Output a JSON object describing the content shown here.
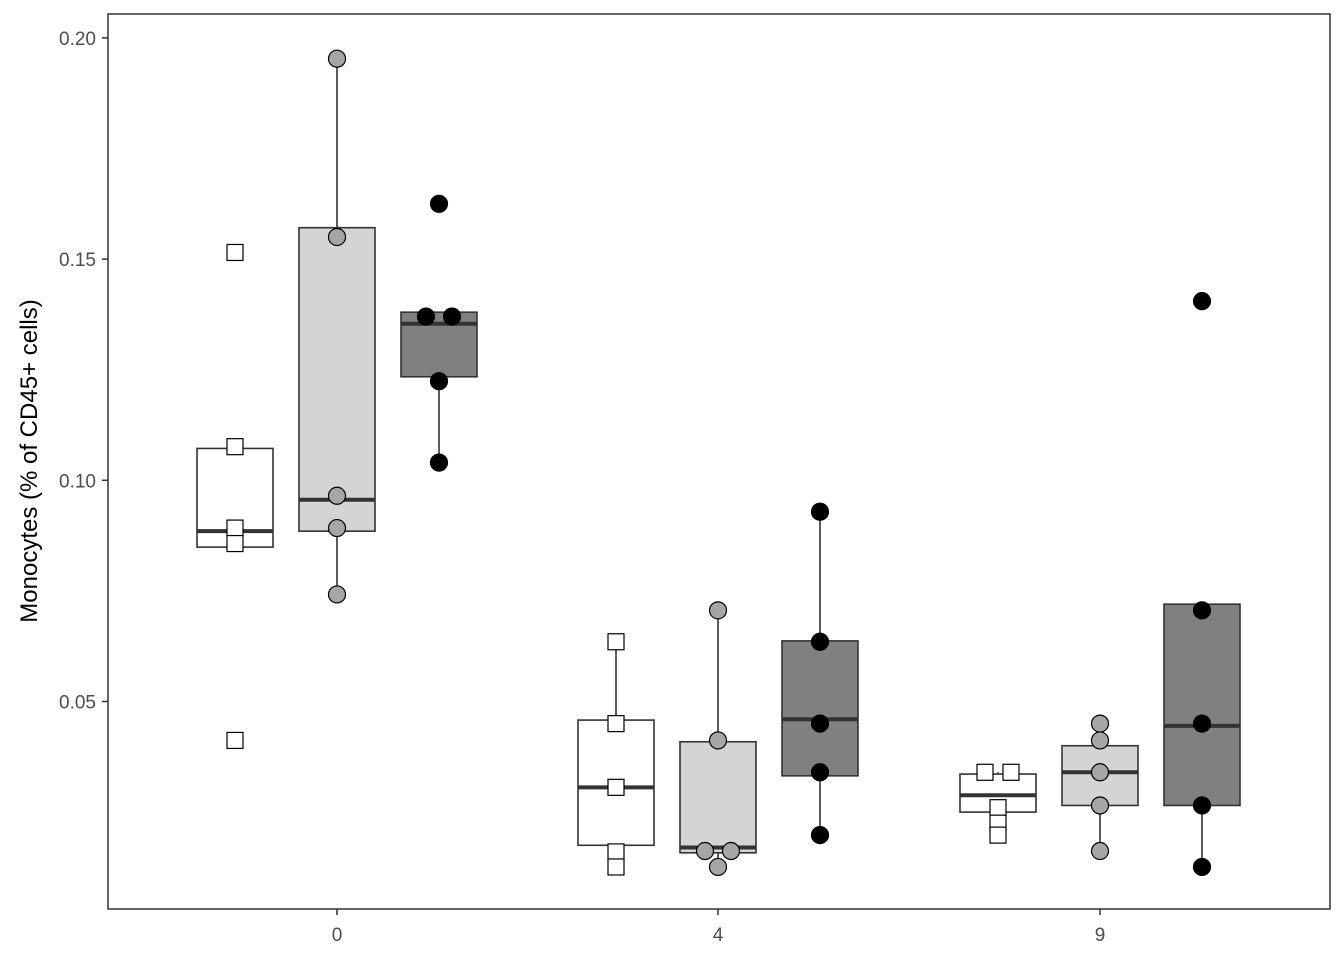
{
  "chart_data": {
    "type": "boxplot",
    "title": "",
    "xlabel": "",
    "ylabel": "Monocytes (% of CD45+ cells)",
    "x_categories": [
      "0",
      "4",
      "9"
    ],
    "y_ticks": [
      "0.05",
      "0.10",
      "0.15",
      "0.20"
    ],
    "ylim": [
      0.005,
      0.205
    ],
    "grid": false,
    "legend": "none",
    "groups": [
      {
        "fill": "#ffffff",
        "point_shape": "square",
        "point_fill": "#ffffff",
        "boxes": [
          {
            "x": "0",
            "q1": 0.0849,
            "median": 0.0885,
            "q3": 0.1072,
            "whisker_low": 0.0849,
            "whisker_high": 0.1072,
            "points": [
              0.1515,
              0.1076,
              0.0892,
              0.0857,
              0.0412
            ]
          },
          {
            "x": "4",
            "q1": 0.0175,
            "median": 0.0306,
            "q3": 0.0458,
            "whisker_low": 0.0126,
            "whisker_high": 0.0637,
            "points": [
              0.0635,
              0.045,
              0.0306,
              0.016,
              0.0126
            ]
          },
          {
            "x": "9",
            "q1": 0.025,
            "median": 0.0288,
            "q3": 0.0336,
            "whisker_low": 0.0198,
            "whisker_high": 0.034,
            "points": [
              0.034,
              0.034,
              0.026,
              0.0225,
              0.0198
            ]
          }
        ]
      },
      {
        "fill": "#d4d4d4",
        "point_shape": "circle",
        "point_fill": "#a6a6a6",
        "boxes": [
          {
            "x": "0",
            "q1": 0.0885,
            "median": 0.0956,
            "q3": 0.1571,
            "whisker_low": 0.0742,
            "whisker_high": 0.1953,
            "points": [
              0.1953,
              0.155,
              0.0965,
              0.0892,
              0.0742
            ]
          },
          {
            "x": "4",
            "q1": 0.0158,
            "median": 0.017,
            "q3": 0.0409,
            "whisker_low": 0.0126,
            "whisker_high": 0.0706,
            "points": [
              0.0706,
              0.0412,
              0.0162,
              0.0162,
              0.0126
            ]
          },
          {
            "x": "9",
            "q1": 0.0265,
            "median": 0.034,
            "q3": 0.04,
            "whisker_low": 0.0162,
            "whisker_high": 0.045,
            "points": [
              0.045,
              0.0412,
              0.034,
              0.0265,
              0.0162
            ]
          }
        ]
      },
      {
        "fill": "#808080",
        "point_shape": "circle",
        "point_fill": "#000000",
        "boxes": [
          {
            "x": "0",
            "q1": 0.1234,
            "median": 0.1354,
            "q3": 0.138,
            "whisker_low": 0.104,
            "whisker_high": 0.138,
            "points": [
              0.1625,
              0.137,
              0.137,
              0.1224,
              0.104
            ]
          },
          {
            "x": "4",
            "q1": 0.0332,
            "median": 0.046,
            "q3": 0.0637,
            "whisker_low": 0.0198,
            "whisker_high": 0.0929,
            "points": [
              0.0929,
              0.0635,
              0.045,
              0.034,
              0.0198
            ]
          },
          {
            "x": "9",
            "q1": 0.0265,
            "median": 0.0445,
            "q3": 0.072,
            "whisker_low": 0.0126,
            "whisker_high": 0.072,
            "points": [
              0.1405,
              0.0706,
              0.045,
              0.0265,
              0.0126
            ]
          }
        ]
      }
    ]
  }
}
